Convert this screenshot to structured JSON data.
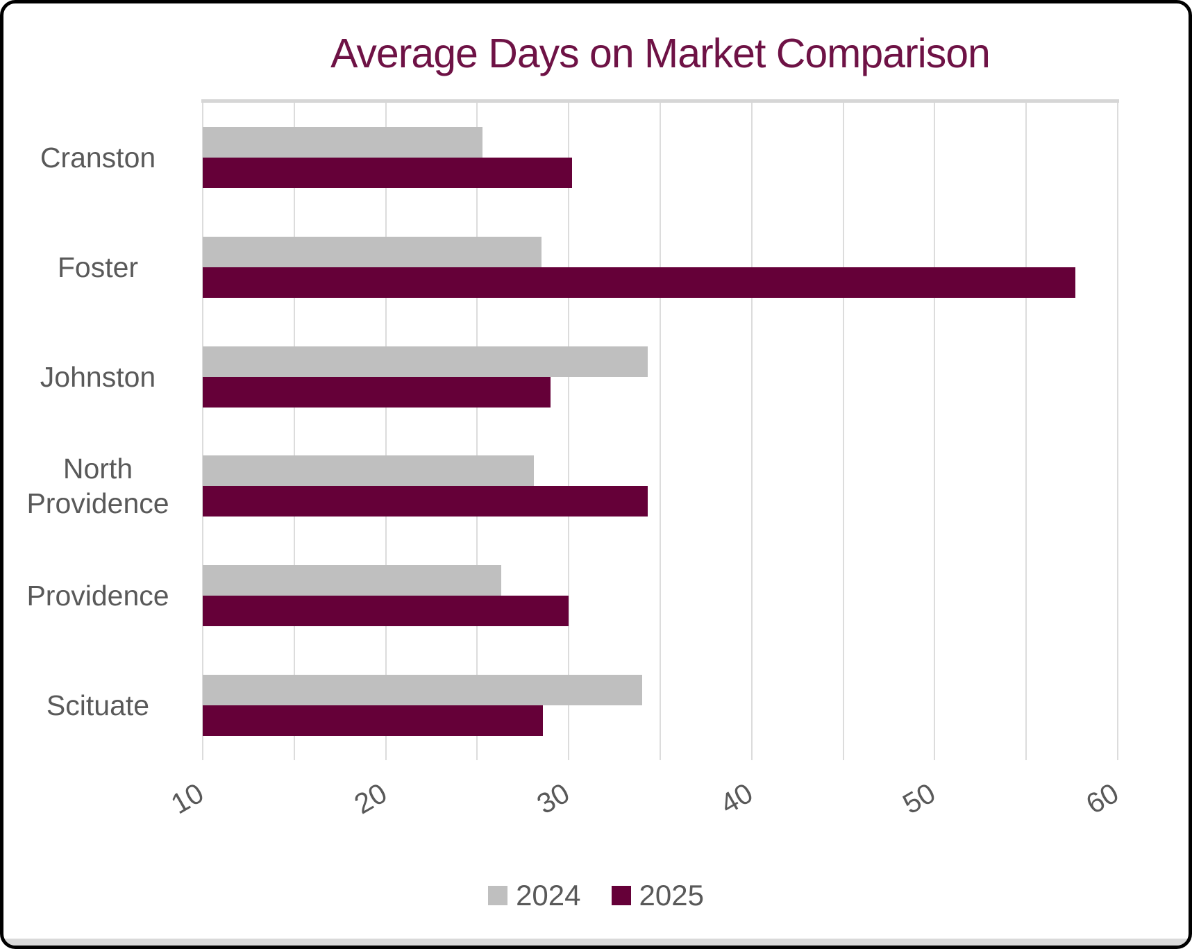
{
  "card": {
    "background": "#FFFFFF",
    "border_color": "#000000",
    "bottom_edge_color": "#D9D9D9"
  },
  "chart_data": {
    "type": "bar",
    "orientation": "horizontal",
    "title": "Average Days on Market Comparison",
    "title_color": "#6E1245",
    "categories": [
      "Cranston",
      "Foster",
      "Johnston",
      "North Providence",
      "Providence",
      "Scituate"
    ],
    "series": [
      {
        "name": "2024",
        "color": "#BFBFBF",
        "values": [
          25.3,
          28.5,
          34.3,
          28.1,
          26.3,
          34.0
        ]
      },
      {
        "name": "2025",
        "color": "#650038",
        "values": [
          30.2,
          57.7,
          29.0,
          34.3,
          30.0,
          28.6
        ]
      }
    ],
    "xlabel": "",
    "ylabel": "",
    "xlim": [
      10,
      60
    ],
    "x_tick_labels": [
      10,
      20,
      30,
      40,
      50,
      60
    ],
    "minor_grid_step": 5,
    "grid": true,
    "grid_color": "#DCDCDC",
    "axis_text_color": "#595959",
    "legend_position": "bottom"
  }
}
